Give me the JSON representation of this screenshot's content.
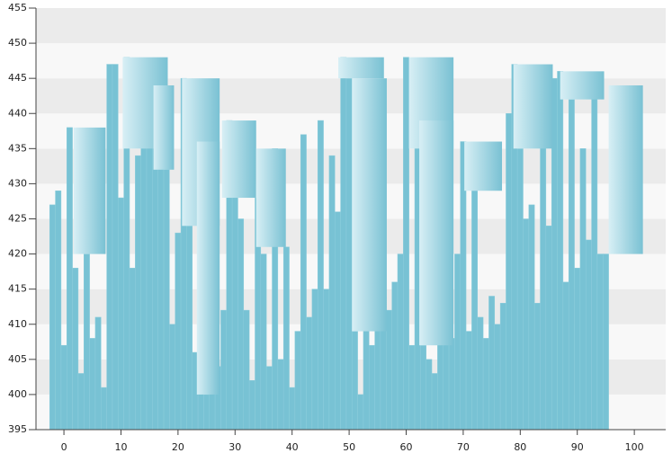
{
  "chart_data": {
    "type": "bar",
    "x": [
      -2,
      -1,
      0,
      1,
      2,
      3,
      4,
      5,
      6,
      7,
      8,
      9,
      10,
      11,
      12,
      13,
      14,
      15,
      16,
      17,
      18,
      19,
      20,
      21,
      22,
      23,
      24,
      25,
      26,
      27,
      28,
      29,
      30,
      31,
      32,
      33,
      34,
      35,
      36,
      37,
      38,
      39,
      40,
      41,
      42,
      43,
      44,
      45,
      46,
      47,
      48,
      49,
      50,
      51,
      52,
      53,
      54,
      55,
      56,
      57,
      58,
      59,
      60,
      61,
      62,
      63,
      64,
      65,
      66,
      67,
      68,
      69,
      70,
      71,
      72,
      73,
      74,
      75,
      76,
      77,
      78,
      79,
      80,
      81,
      82,
      83,
      84,
      85,
      86,
      87,
      88,
      89,
      90,
      91,
      92,
      93,
      94,
      95
    ],
    "values": [
      427,
      429,
      407,
      438,
      418,
      403,
      420,
      408,
      411,
      401,
      447,
      447,
      428,
      448,
      418,
      434,
      441,
      441,
      444,
      435,
      432,
      410,
      423,
      445,
      424,
      406,
      436,
      400,
      409,
      404,
      412,
      439,
      433,
      425,
      412,
      402,
      428,
      420,
      404,
      435,
      405,
      421,
      401,
      409,
      437,
      411,
      415,
      439,
      415,
      434,
      426,
      448,
      445,
      409,
      400,
      417,
      407,
      412,
      414,
      412,
      416,
      420,
      448,
      407,
      439,
      407,
      405,
      403,
      435,
      415,
      408,
      420,
      436,
      409,
      429,
      411,
      408,
      414,
      410,
      413,
      440,
      447,
      435,
      425,
      427,
      413,
      444,
      424,
      445,
      446,
      416,
      442,
      418,
      435,
      422,
      444,
      420,
      420
    ],
    "color": "#78c2d4",
    "ranges": {
      "x0": [
        1.7,
        10.3,
        15.7,
        20.7,
        23.3,
        27.7,
        33.7,
        48.1,
        50.5,
        60.5,
        62.3,
        70.2,
        78.8,
        87.0,
        95.5
      ],
      "x1": [
        7.3,
        18.2,
        19.3,
        27.3,
        27.3,
        33.7,
        38.9,
        56.1,
        56.6,
        68.3,
        68.3,
        76.8,
        85.7,
        94.7,
        101.5
      ],
      "low": [
        420,
        435,
        432,
        424,
        400,
        428,
        421,
        445,
        409,
        435,
        407,
        429,
        435,
        442,
        420
      ],
      "high": [
        438,
        448,
        444,
        445,
        436,
        439,
        435,
        448,
        445,
        448,
        439,
        436,
        447,
        446,
        444
      ]
    },
    "xlim": [
      -4.9,
      105.5
    ],
    "ylim": [
      395,
      455
    ],
    "xticks": [
      0,
      10,
      20,
      30,
      40,
      50,
      60,
      70,
      80,
      90,
      100
    ],
    "yticks": [
      395,
      400,
      405,
      410,
      415,
      420,
      425,
      430,
      435,
      440,
      445,
      450,
      455
    ],
    "grid": true
  }
}
